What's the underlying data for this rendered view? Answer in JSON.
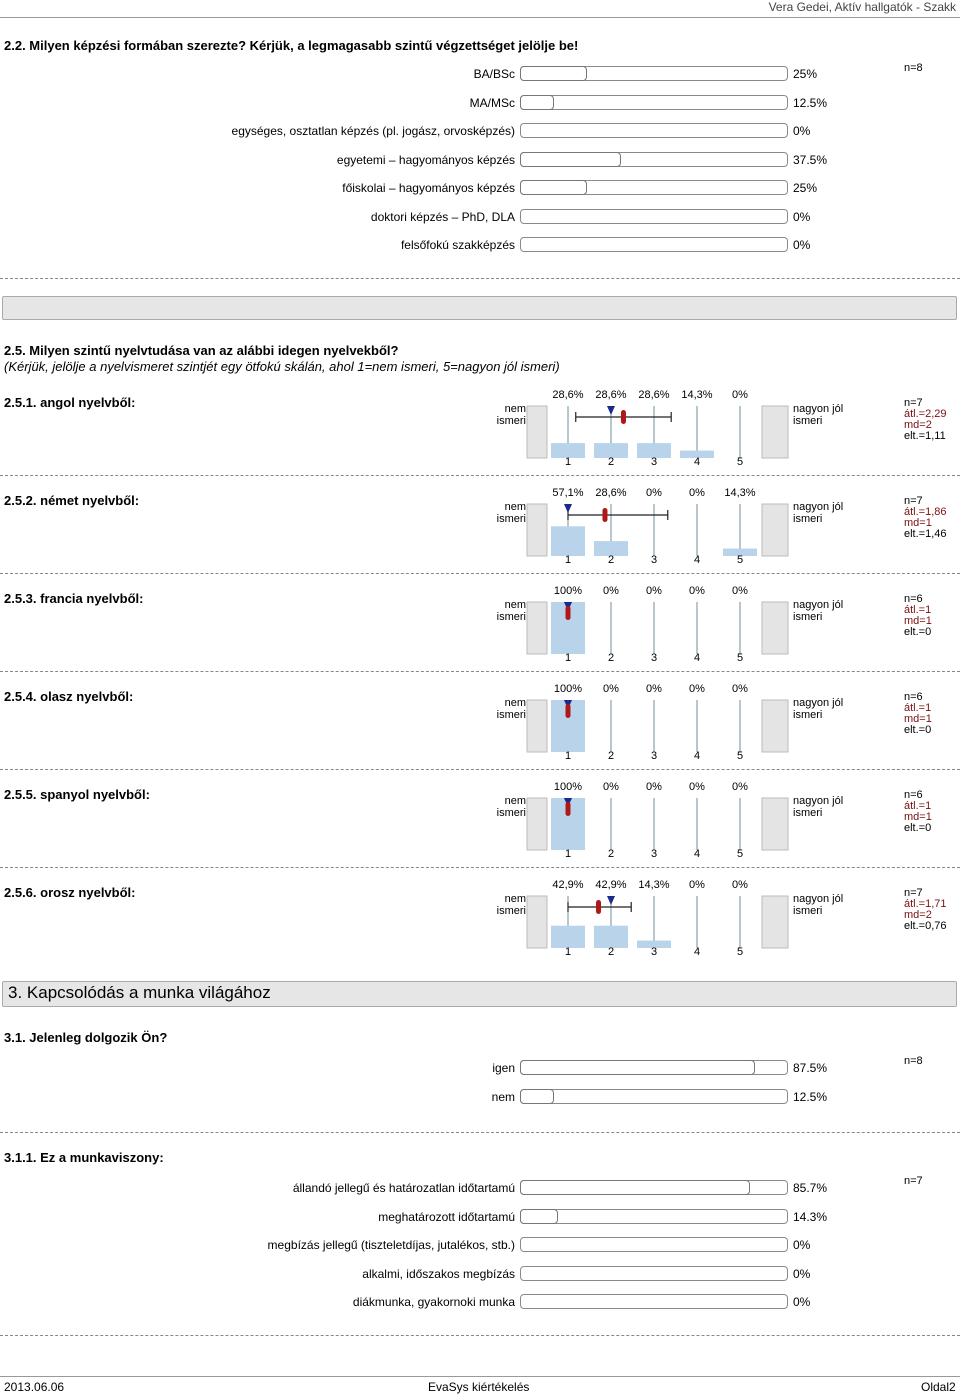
{
  "header": {
    "author": "Vera Gedei, Aktív hallgatók - Szakk"
  },
  "q22": {
    "title": "2.2. Milyen képzési formában szerezte? Kérjük, a legmagasabb szintű végzettséget jelölje be!",
    "n": "n=8",
    "options": [
      {
        "label": "BA/BSc",
        "pct": "25%",
        "value": 25
      },
      {
        "label": "MA/MSc",
        "pct": "12.5%",
        "value": 12.5
      },
      {
        "label": "egységes, osztatlan képzés (pl. jogász, orvosképzés)",
        "pct": "0%",
        "value": 0
      },
      {
        "label": "egyetemi – hagyományos képzés",
        "pct": "37.5%",
        "value": 37.5
      },
      {
        "label": "főiskolai – hagyományos képzés",
        "pct": "25%",
        "value": 25
      },
      {
        "label": "doktori képzés – PhD, DLA",
        "pct": "0%",
        "value": 0
      },
      {
        "label": "felsőfokú szakképzés",
        "pct": "0%",
        "value": 0
      }
    ]
  },
  "q25": {
    "title": "2.5. Milyen szintű nyelvtudása van az alábbi idegen nyelvekből?",
    "subtitle": "(Kérjük, jelölje a nyelvismeret szintjét egy ötfokú skálán, ahol 1=nem ismeri, 5=nagyon jól ismeri)",
    "left_label": "nem ismeri",
    "right_label": "nagyon jól ismeri",
    "scale": [
      "1",
      "2",
      "3",
      "4",
      "5"
    ],
    "items": [
      {
        "title": "2.5.1. angol nyelvből:",
        "pcts": [
          "28,6%",
          "28,6%",
          "28,6%",
          "14,3%",
          "0%"
        ],
        "values": [
          28.6,
          28.6,
          28.6,
          14.3,
          0
        ],
        "mean": 2.29,
        "median": 2,
        "sd": 1.11,
        "n": "n=7",
        "avg": "átl.=2,29",
        "md": "md=2",
        "elt": "elt.=1,11"
      },
      {
        "title": "2.5.2. német nyelvből:",
        "pcts": [
          "57,1%",
          "28,6%",
          "0%",
          "0%",
          "14,3%"
        ],
        "values": [
          57.1,
          28.6,
          0,
          0,
          14.3
        ],
        "mean": 1.86,
        "median": 1,
        "sd": 1.46,
        "n": "n=7",
        "avg": "átl.=1,86",
        "md": "md=1",
        "elt": "elt.=1,46"
      },
      {
        "title": "2.5.3. francia nyelvből:",
        "pcts": [
          "100%",
          "0%",
          "0%",
          "0%",
          "0%"
        ],
        "values": [
          100,
          0,
          0,
          0,
          0
        ],
        "mean": 1,
        "median": 1,
        "sd": 0,
        "n": "n=6",
        "avg": "átl.=1",
        "md": "md=1",
        "elt": "elt.=0"
      },
      {
        "title": "2.5.4. olasz nyelvből:",
        "pcts": [
          "100%",
          "0%",
          "0%",
          "0%",
          "0%"
        ],
        "values": [
          100,
          0,
          0,
          0,
          0
        ],
        "mean": 1,
        "median": 1,
        "sd": 0,
        "n": "n=6",
        "avg": "átl.=1",
        "md": "md=1",
        "elt": "elt.=0"
      },
      {
        "title": "2.5.5. spanyol nyelvből:",
        "pcts": [
          "100%",
          "0%",
          "0%",
          "0%",
          "0%"
        ],
        "values": [
          100,
          0,
          0,
          0,
          0
        ],
        "mean": 1,
        "median": 1,
        "sd": 0,
        "n": "n=6",
        "avg": "átl.=1",
        "md": "md=1",
        "elt": "elt.=0"
      },
      {
        "title": "2.5.6. orosz nyelvből:",
        "pcts": [
          "42,9%",
          "42,9%",
          "14,3%",
          "0%",
          "0%"
        ],
        "values": [
          42.9,
          42.9,
          14.3,
          0,
          0
        ],
        "mean": 1.71,
        "median": 2,
        "sd": 0.76,
        "n": "n=7",
        "avg": "átl.=1,71",
        "md": "md=2",
        "elt": "elt.=0,76"
      }
    ]
  },
  "section3": {
    "title": "3. Kapcsolódás a munka világához"
  },
  "q31": {
    "title": "3.1. Jelenleg dolgozik Ön?",
    "n": "n=8",
    "options": [
      {
        "label": "igen",
        "pct": "87.5%",
        "value": 87.5
      },
      {
        "label": "nem",
        "pct": "12.5%",
        "value": 12.5
      }
    ]
  },
  "q311": {
    "title": "3.1.1. Ez a munkaviszony:",
    "n": "n=7",
    "options": [
      {
        "label": "állandó jellegű és határozatlan időtartamú",
        "pct": "85.7%",
        "value": 85.7
      },
      {
        "label": "meghatározott időtartamú",
        "pct": "14.3%",
        "value": 14.3
      },
      {
        "label": "megbízás jellegű (tiszteletdíjas, jutalékos, stb.)",
        "pct": "0%",
        "value": 0
      },
      {
        "label": "alkalmi, időszakos megbízás",
        "pct": "0%",
        "value": 0
      },
      {
        "label": "diákmunka, gyakornoki munka",
        "pct": "0%",
        "value": 0
      }
    ]
  },
  "footer": {
    "date": "2013.06.06",
    "center": "EvaSys kiértékelés",
    "page": "Oldal2"
  }
}
